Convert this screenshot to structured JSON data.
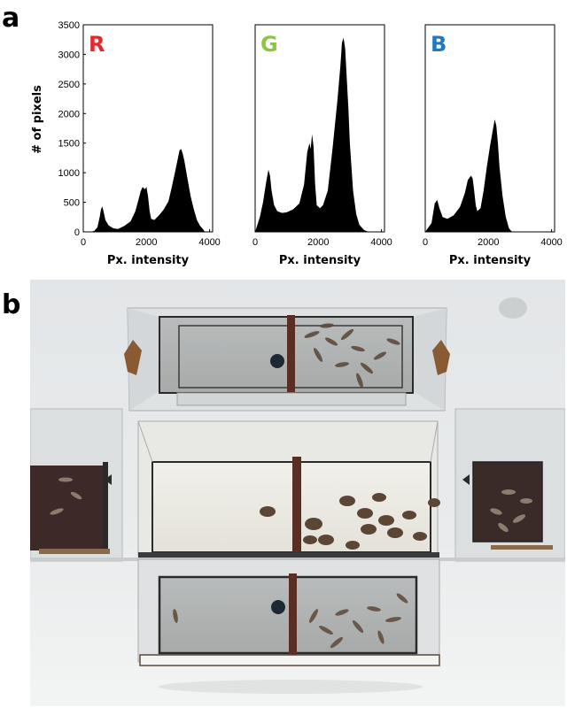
{
  "figure": {
    "panel_a_label": "a",
    "panel_b_label": "b"
  },
  "chart_data": [
    {
      "type": "area",
      "panel_label": "R",
      "label_color": "#e8262b",
      "fill_color": "#000000",
      "xlabel": "Px. intensity",
      "ylabel": "# of pixels",
      "xlim": [
        0,
        4096
      ],
      "ylim": [
        0,
        3500
      ],
      "xticks": [
        0,
        2000,
        4000
      ],
      "yticks": [
        0,
        500,
        1000,
        1500,
        2000,
        2500,
        3000,
        3500
      ],
      "grid": false,
      "x": [
        250,
        350,
        450,
        520,
        560,
        600,
        640,
        700,
        800,
        950,
        1100,
        1300,
        1500,
        1650,
        1750,
        1820,
        1880,
        1950,
        2000,
        2050,
        2100,
        2150,
        2250,
        2400,
        2550,
        2700,
        2800,
        2900,
        3000,
        3050,
        3100,
        3150,
        3200,
        3300,
        3400,
        3500,
        3600,
        3700,
        3800,
        3850
      ],
      "values": [
        0,
        20,
        80,
        250,
        380,
        430,
        350,
        200,
        110,
        60,
        50,
        100,
        180,
        350,
        550,
        690,
        760,
        720,
        760,
        600,
        350,
        220,
        200,
        280,
        380,
        520,
        750,
        1000,
        1250,
        1380,
        1400,
        1320,
        1200,
        900,
        600,
        380,
        200,
        100,
        40,
        0
      ]
    },
    {
      "type": "area",
      "panel_label": "G",
      "label_color": "#8cc63f",
      "fill_color": "#000000",
      "xlabel": "Px. intensity",
      "ylabel": "",
      "xlim": [
        0,
        4096
      ],
      "ylim": [
        0,
        3500
      ],
      "xticks": [
        0,
        2000,
        4000
      ],
      "yticks": [],
      "grid": false,
      "x": [
        0,
        150,
        250,
        350,
        420,
        470,
        520,
        600,
        700,
        850,
        1000,
        1200,
        1400,
        1550,
        1650,
        1720,
        1760,
        1800,
        1850,
        1900,
        1950,
        2050,
        2150,
        2300,
        2450,
        2600,
        2700,
        2750,
        2800,
        2850,
        2900,
        2950,
        3000,
        3100,
        3200,
        3300,
        3450,
        3600
      ],
      "values": [
        0,
        250,
        500,
        850,
        1050,
        950,
        700,
        450,
        350,
        320,
        330,
        380,
        480,
        800,
        1350,
        1500,
        1400,
        1650,
        1450,
        800,
        450,
        400,
        450,
        700,
        1400,
        2200,
        2800,
        3200,
        3280,
        3100,
        2600,
        2100,
        1500,
        700,
        300,
        120,
        30,
        0
      ]
    },
    {
      "type": "area",
      "panel_label": "B",
      "label_color": "#1f7ac4",
      "fill_color": "#000000",
      "xlabel": "Px. intensity",
      "ylabel": "",
      "xlim": [
        0,
        4096
      ],
      "ylim": [
        0,
        3500
      ],
      "xticks": [
        0,
        2000,
        4000
      ],
      "yticks": [],
      "grid": false,
      "x": [
        0,
        200,
        300,
        380,
        450,
        550,
        700,
        900,
        1100,
        1250,
        1350,
        1450,
        1500,
        1550,
        1600,
        1650,
        1750,
        1850,
        1950,
        2050,
        2150,
        2200,
        2250,
        2300,
        2350,
        2450,
        2550,
        2650,
        2750
      ],
      "values": [
        0,
        150,
        480,
        540,
        400,
        250,
        220,
        280,
        420,
        650,
        880,
        950,
        900,
        700,
        450,
        350,
        400,
        700,
        1100,
        1450,
        1750,
        1900,
        1800,
        1500,
        1100,
        600,
        250,
        60,
        0
      ]
    }
  ],
  "photo": {
    "description_icon": "photo-aquarium-tanks"
  }
}
